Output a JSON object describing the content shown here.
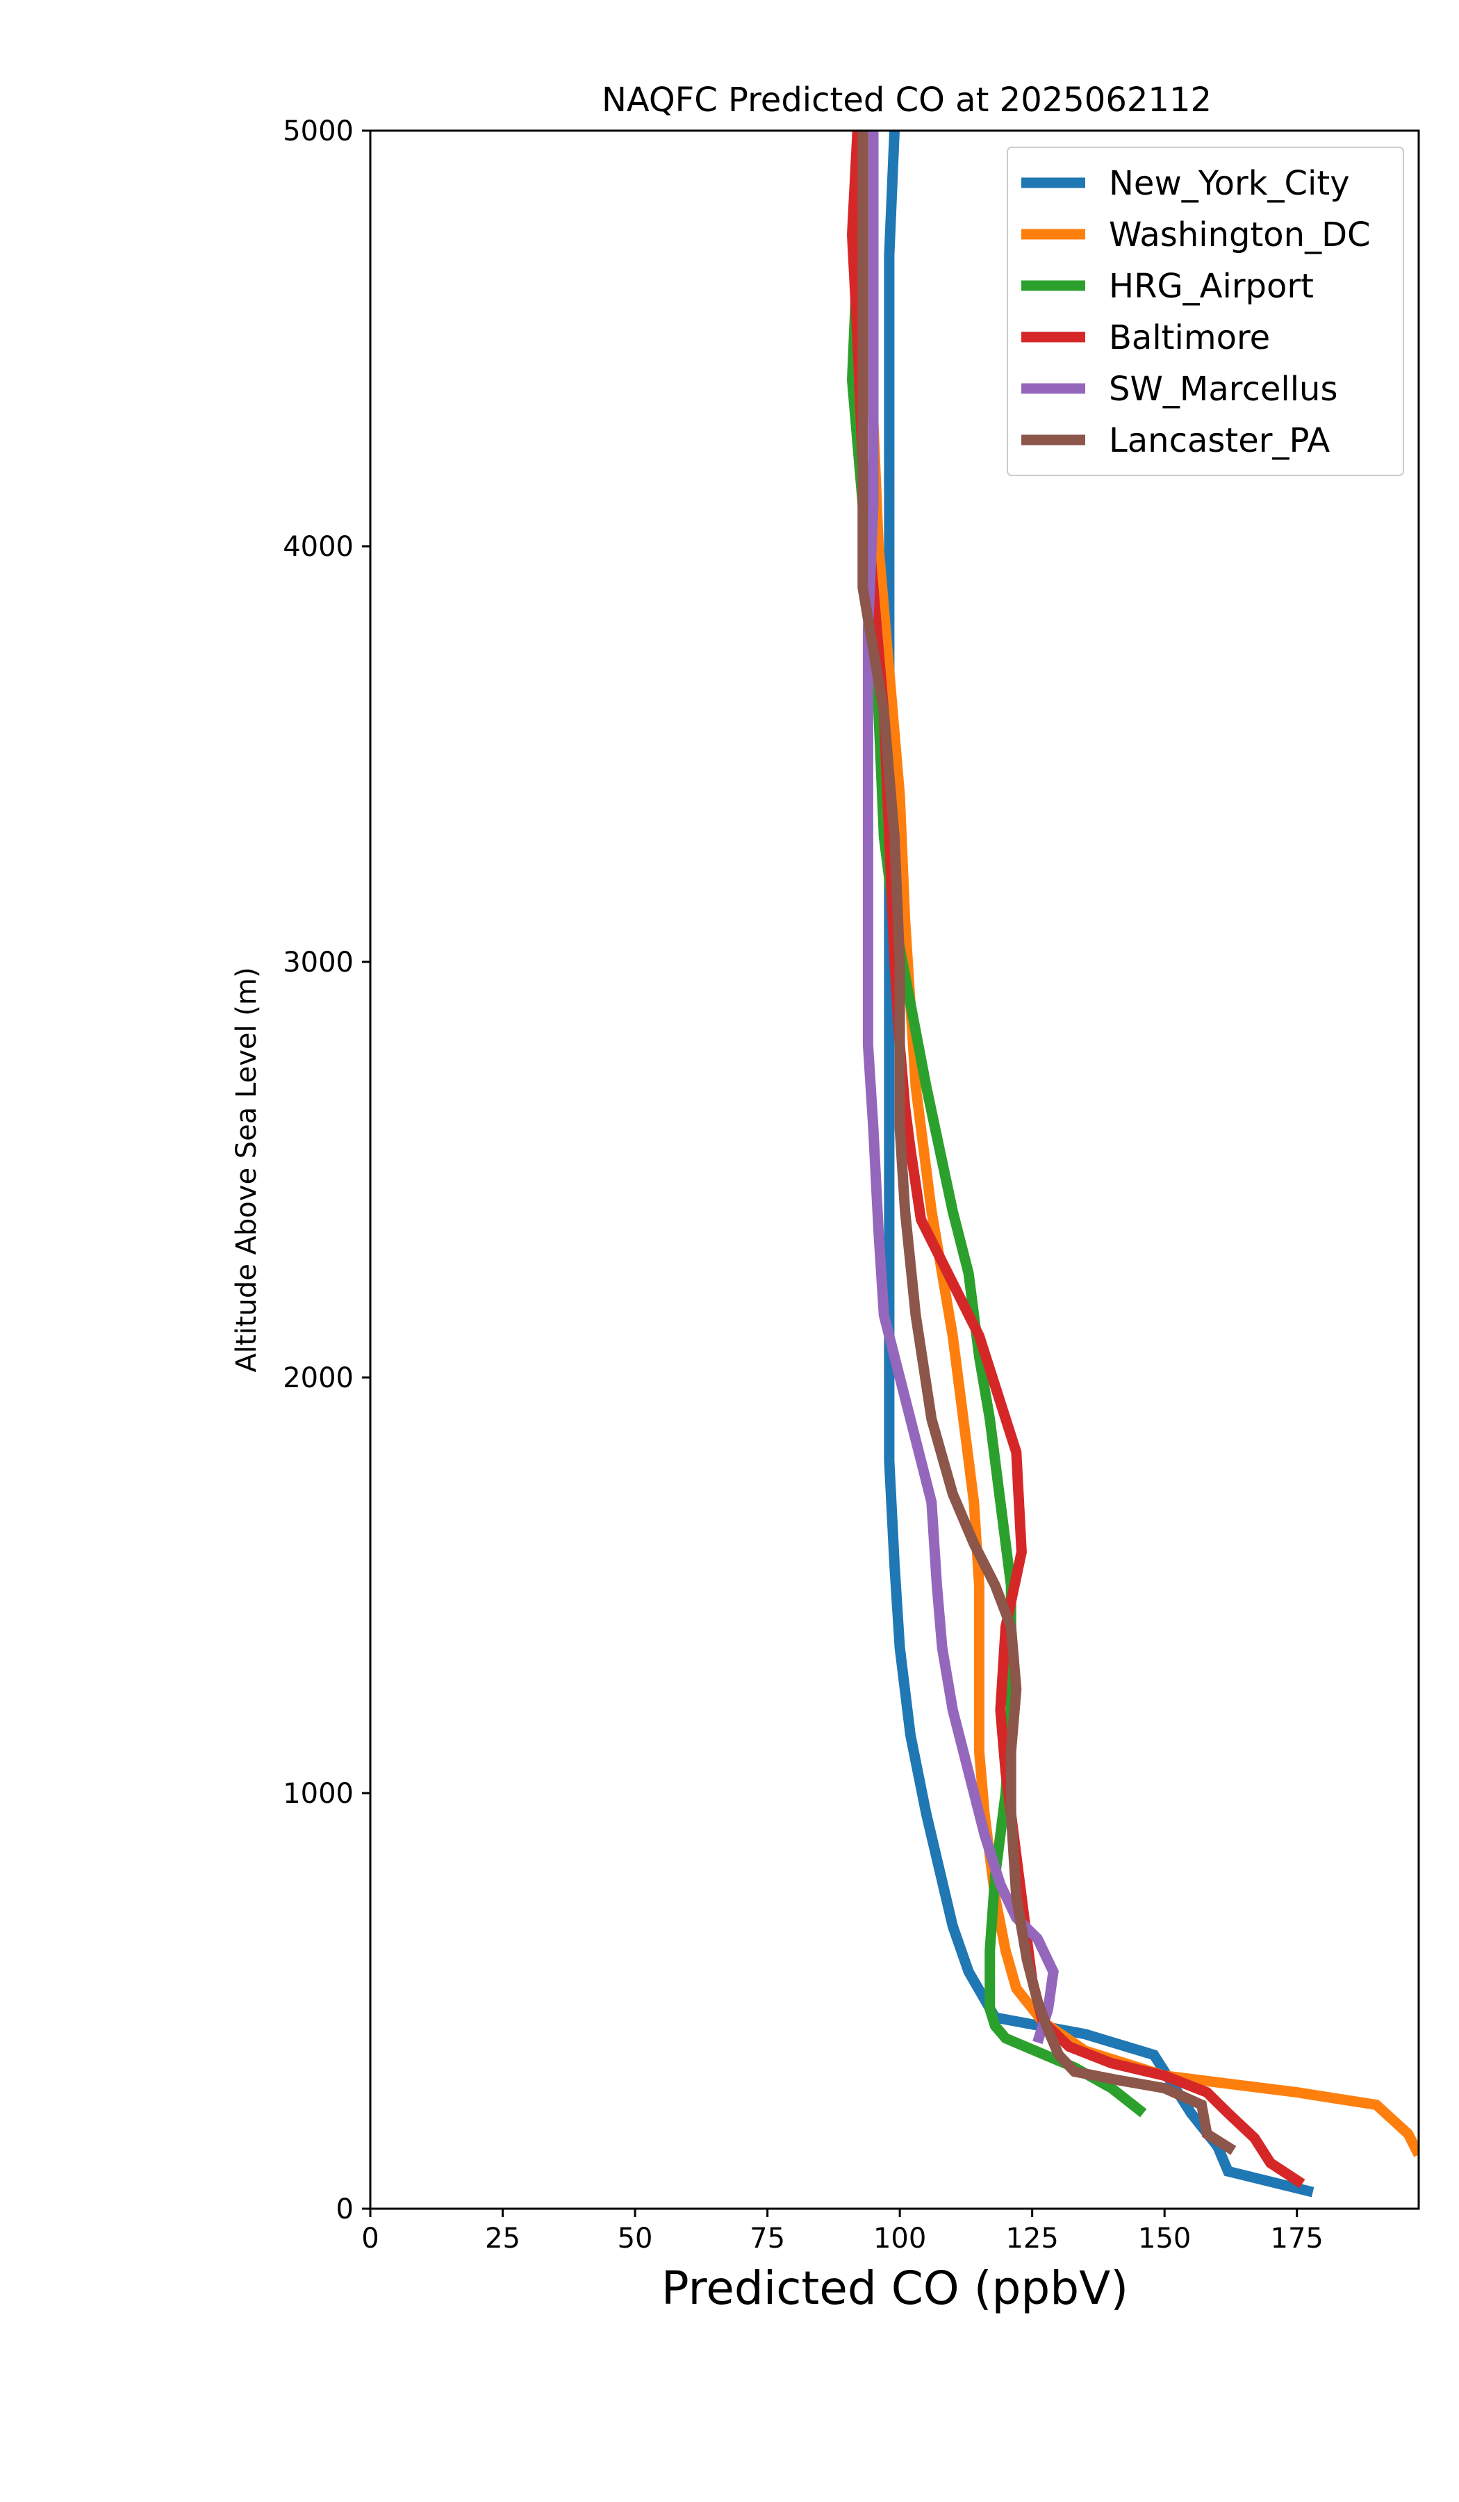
{
  "chart_data": {
    "type": "line",
    "title": "NAQFC Predicted CO at 2025062112",
    "xlabel": "Predicted CO (ppbV)",
    "ylabel": "Altitude Above Sea Level (m)",
    "xlim": [
      0,
      198
    ],
    "ylim": [
      0,
      5000
    ],
    "xticks": [
      0,
      25,
      50,
      75,
      100,
      125,
      150,
      175
    ],
    "yticks": [
      0,
      1000,
      2000,
      3000,
      4000,
      5000
    ],
    "grid": false,
    "legend_position": "top-right",
    "series": [
      {
        "name": "New_York_City",
        "color": "#1f77b4",
        "points": [
          [
            178,
            40
          ],
          [
            162,
            90
          ],
          [
            160,
            150
          ],
          [
            155,
            230
          ],
          [
            148,
            370
          ],
          [
            135,
            420
          ],
          [
            118,
            460
          ],
          [
            113,
            570
          ],
          [
            110,
            680
          ],
          [
            105,
            950
          ],
          [
            102,
            1140
          ],
          [
            100,
            1350
          ],
          [
            99,
            1550
          ],
          [
            98,
            1800
          ],
          [
            98,
            2050
          ],
          [
            98,
            2300
          ],
          [
            98,
            3000
          ],
          [
            98,
            3500
          ],
          [
            98,
            3900
          ],
          [
            98,
            4200
          ],
          [
            98,
            4700
          ],
          [
            99,
            5000
          ]
        ]
      },
      {
        "name": "Washington_DC",
        "color": "#ff7f0e",
        "points": [
          [
            198,
            130
          ],
          [
            196,
            180
          ],
          [
            190,
            250
          ],
          [
            175,
            280
          ],
          [
            150,
            320
          ],
          [
            135,
            380
          ],
          [
            127,
            450
          ],
          [
            122,
            530
          ],
          [
            120,
            620
          ],
          [
            118,
            750
          ],
          [
            117,
            850
          ],
          [
            116,
            950
          ],
          [
            115,
            1100
          ],
          [
            115,
            1300
          ],
          [
            115,
            1500
          ],
          [
            114,
            1700
          ],
          [
            112,
            1900
          ],
          [
            110,
            2100
          ],
          [
            106,
            2400
          ],
          [
            103,
            2700
          ],
          [
            101,
            3100
          ],
          [
            100,
            3400
          ],
          [
            98,
            3700
          ],
          [
            96,
            4000
          ],
          [
            95,
            4300
          ],
          [
            94,
            4600
          ],
          [
            93,
            5000
          ]
        ]
      },
      {
        "name": "HRG_Airport",
        "color": "#2ca02c",
        "points": [
          [
            146,
            230
          ],
          [
            140,
            290
          ],
          [
            133,
            340
          ],
          [
            120,
            410
          ],
          [
            118,
            440
          ],
          [
            117,
            480
          ],
          [
            117,
            620
          ],
          [
            118,
            800
          ],
          [
            120,
            1000
          ],
          [
            121,
            1200
          ],
          [
            121,
            1500
          ],
          [
            119,
            1700
          ],
          [
            117,
            1900
          ],
          [
            115,
            2050
          ],
          [
            113,
            2250
          ],
          [
            110,
            2400
          ],
          [
            105,
            2700
          ],
          [
            102,
            2900
          ],
          [
            99,
            3100
          ],
          [
            97,
            3300
          ],
          [
            96,
            3600
          ],
          [
            95,
            3900
          ],
          [
            93,
            4100
          ],
          [
            91,
            4400
          ],
          [
            92,
            4700
          ],
          [
            93,
            5000
          ]
        ]
      },
      {
        "name": "Baltimore",
        "color": "#d62728",
        "points": [
          [
            176,
            60
          ],
          [
            170,
            110
          ],
          [
            167,
            170
          ],
          [
            162,
            230
          ],
          [
            158,
            280
          ],
          [
            150,
            320
          ],
          [
            140,
            350
          ],
          [
            132,
            390
          ],
          [
            127,
            450
          ],
          [
            125,
            550
          ],
          [
            124,
            650
          ],
          [
            123,
            750
          ],
          [
            122,
            850
          ],
          [
            121,
            950
          ],
          [
            120,
            1050
          ],
          [
            119,
            1200
          ],
          [
            120,
            1400
          ],
          [
            123,
            1580
          ],
          [
            122,
            1820
          ],
          [
            115,
            2100
          ],
          [
            104,
            2380
          ],
          [
            102,
            2550
          ],
          [
            101,
            2650
          ],
          [
            100,
            2800
          ],
          [
            99,
            3000
          ],
          [
            98,
            3300
          ],
          [
            97,
            3600
          ],
          [
            95,
            3900
          ],
          [
            93,
            4200
          ],
          [
            92,
            4500
          ],
          [
            91,
            4750
          ],
          [
            92,
            5000
          ]
        ]
      },
      {
        "name": "SW_Marcellus",
        "color": "#9467bd",
        "points": [
          [
            126,
            400
          ],
          [
            128,
            480
          ],
          [
            129,
            570
          ],
          [
            126,
            650
          ],
          [
            122,
            700
          ],
          [
            119,
            780
          ],
          [
            116,
            900
          ],
          [
            113,
            1050
          ],
          [
            110,
            1200
          ],
          [
            108,
            1350
          ],
          [
            107,
            1500
          ],
          [
            106,
            1700
          ],
          [
            102,
            1900
          ],
          [
            99,
            2050
          ],
          [
            97,
            2150
          ],
          [
            96,
            2350
          ],
          [
            95,
            2600
          ],
          [
            94,
            2800
          ],
          [
            94,
            3000
          ],
          [
            94,
            3200
          ],
          [
            94,
            3500
          ],
          [
            94,
            3800
          ],
          [
            95,
            4100
          ],
          [
            95,
            4500
          ],
          [
            95,
            4800
          ],
          [
            95,
            5000
          ]
        ]
      },
      {
        "name": "Lancaster_PA",
        "color": "#8c564b",
        "points": [
          [
            163,
            140
          ],
          [
            158,
            180
          ],
          [
            157,
            250
          ],
          [
            150,
            290
          ],
          [
            141,
            310
          ],
          [
            133,
            330
          ],
          [
            130,
            370
          ],
          [
            128,
            430
          ],
          [
            126,
            500
          ],
          [
            124,
            600
          ],
          [
            122,
            750
          ],
          [
            121,
            950
          ],
          [
            121,
            1100
          ],
          [
            122,
            1250
          ],
          [
            121,
            1400
          ],
          [
            118,
            1500
          ],
          [
            114,
            1600
          ],
          [
            110,
            1720
          ],
          [
            106,
            1900
          ],
          [
            103,
            2150
          ],
          [
            101,
            2400
          ],
          [
            100,
            2600
          ],
          [
            100,
            3000
          ],
          [
            99,
            3300
          ],
          [
            97,
            3600
          ],
          [
            93,
            3900
          ],
          [
            93,
            4200
          ],
          [
            93,
            4500
          ],
          [
            93,
            4800
          ],
          [
            93,
            5000
          ]
        ]
      }
    ]
  }
}
